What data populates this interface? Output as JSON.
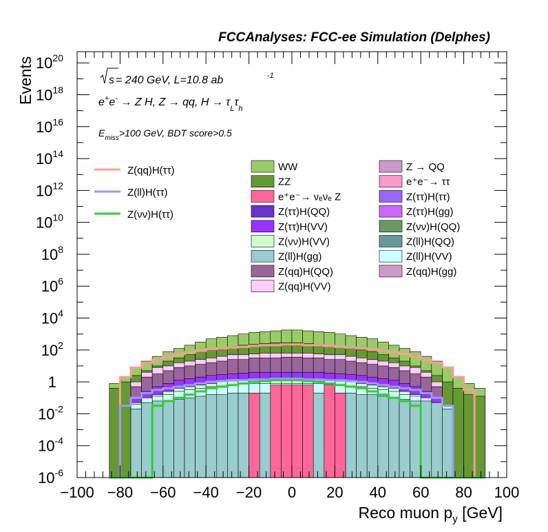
{
  "header": {
    "title": "FCCAnalyses: FCC-ee Simulation (Delphes)"
  },
  "annotations": {
    "line1_sqrt": "√s",
    "line1_rest": " = 240 GeV, L=10.8 ab",
    "line1_sup": "-1",
    "line2": "e⁺e⁻ → Z H, Z → qq, H → τ_L τ_h",
    "line3": "E_miss>100 GeV, BDT score>0.5"
  },
  "chart_data": {
    "type": "histogram",
    "xlabel": "Reco muon p_y [GeV]",
    "ylabel": "Events",
    "xlim": [
      -100,
      100
    ],
    "ylim_log10": [
      -6,
      20.7
    ],
    "yscale": "log",
    "x_ticks": [
      "−100",
      "−80",
      "−60",
      "−40",
      "−20",
      "0",
      "20",
      "40",
      "60",
      "80",
      "100"
    ],
    "y_ticks": [
      {
        "base": "10",
        "exp": "20"
      },
      {
        "base": "10",
        "exp": "18"
      },
      {
        "base": "10",
        "exp": "16"
      },
      {
        "base": "10",
        "exp": "14"
      },
      {
        "base": "10",
        "exp": "12"
      },
      {
        "base": "10",
        "exp": "10"
      },
      {
        "base": "10",
        "exp": "8"
      },
      {
        "base": "10",
        "exp": "6"
      },
      {
        "base": "10",
        "exp": "4"
      },
      {
        "base": "10",
        "exp": "2"
      },
      {
        "base": "1",
        "exp": ""
      },
      {
        "base": "10",
        "exp": "-2"
      },
      {
        "base": "10",
        "exp": "-4"
      },
      {
        "base": "10",
        "exp": "-6"
      }
    ],
    "bin_width": 5,
    "bin_edges": [
      -85,
      -80,
      -75,
      -70,
      -65,
      -60,
      -55,
      -50,
      -45,
      -40,
      -35,
      -30,
      -25,
      -20,
      -15,
      -10,
      -5,
      0,
      5,
      10,
      15,
      20,
      25,
      30,
      35,
      40,
      45,
      50,
      55,
      60,
      65,
      70,
      75,
      80,
      85,
      90
    ],
    "stack_tops": [
      {
        "name": "WW",
        "color": "#99cc66",
        "log10": [
          -0.1,
          0.3,
          0.9,
          1.3,
          1.6,
          1.9,
          2.1,
          2.3,
          2.5,
          2.7,
          2.8,
          2.9,
          3.0,
          3.1,
          3.15,
          3.2,
          3.25,
          3.25,
          3.2,
          3.15,
          3.1,
          3.0,
          2.9,
          2.8,
          2.7,
          2.5,
          2.3,
          2.1,
          1.9,
          1.6,
          1.3,
          0.9,
          0.3,
          -0.1,
          -0.4
        ]
      },
      {
        "name": "ZZ",
        "color": "#669933",
        "log10": [
          -0.4,
          0.0,
          0.4,
          0.7,
          1.0,
          1.3,
          1.5,
          1.7,
          1.9,
          2.0,
          2.1,
          2.2,
          2.3,
          2.35,
          2.4,
          2.45,
          2.45,
          2.45,
          2.4,
          2.35,
          2.3,
          2.2,
          2.1,
          2.0,
          1.9,
          1.7,
          1.5,
          1.3,
          1.0,
          0.7,
          0.4,
          0.0,
          -0.4,
          -0.8,
          -0.9
        ]
      },
      {
        "name": "Z(qq)H(VV) and lower stack",
        "color": "#ffccff",
        "log10": [
          -6,
          -6,
          0.0,
          0.6,
          0.9,
          1.0,
          1.2,
          1.3,
          1.4,
          1.5,
          1.6,
          1.7,
          1.7,
          1.75,
          1.8,
          1.8,
          1.8,
          1.8,
          1.8,
          1.75,
          1.7,
          1.7,
          1.6,
          1.5,
          1.4,
          1.3,
          1.2,
          1.0,
          0.9,
          0.6,
          0.0,
          -6,
          -6,
          -6,
          -6
        ]
      },
      {
        "name": "Z(qq)H(QQ)",
        "color": "#996699",
        "log10": [
          -6,
          -6,
          -0.3,
          0.3,
          0.5,
          0.7,
          0.9,
          1.0,
          1.1,
          1.2,
          1.3,
          1.4,
          1.4,
          1.5,
          1.5,
          1.5,
          1.55,
          1.55,
          1.5,
          1.5,
          1.4,
          1.4,
          1.3,
          1.2,
          1.1,
          1.0,
          0.9,
          0.7,
          0.5,
          0.3,
          -0.3,
          -6,
          -6,
          -6,
          -6
        ]
      },
      {
        "name": "Z(ττ)H(VV)",
        "color": "#9933ff",
        "log10": [
          -6,
          -6,
          -1.0,
          -0.6,
          -0.3,
          -0.1,
          0.1,
          0.2,
          0.3,
          0.4,
          0.45,
          0.5,
          0.55,
          0.6,
          0.6,
          0.6,
          0.6,
          0.6,
          0.6,
          0.6,
          0.55,
          0.5,
          0.45,
          0.4,
          0.3,
          0.2,
          0.1,
          -0.1,
          -0.3,
          -0.6,
          -1.0,
          -6,
          -6,
          -6,
          -6
        ]
      },
      {
        "name": "Z(νν)H(VV)",
        "color": "#ccffcc",
        "log10": [
          -6,
          -6,
          -1.3,
          -1.0,
          -0.8,
          -0.6,
          -0.4,
          -0.3,
          -0.2,
          -0.1,
          0.0,
          0.05,
          0.1,
          0.1,
          0.1,
          0.1,
          0.1,
          0.1,
          0.1,
          0.1,
          0.1,
          0.05,
          0.0,
          -0.1,
          -0.2,
          -0.3,
          -0.4,
          -0.6,
          -0.8,
          -1.0,
          -1.3,
          -6,
          -6,
          -6,
          -6
        ]
      },
      {
        "name": "Z(ll)H(VV)",
        "color": "#ccffff",
        "log10": [
          -6,
          -6,
          -1.4,
          -1.0,
          -0.9,
          -0.8,
          -0.6,
          -0.5,
          -0.4,
          -0.3,
          -0.25,
          -0.2,
          -0.15,
          -0.1,
          -0.1,
          -0.1,
          -0.1,
          -0.1,
          -0.1,
          -0.1,
          -0.15,
          -0.2,
          -0.25,
          -0.3,
          -0.4,
          -0.5,
          -0.6,
          -0.8,
          -0.9,
          -1.0,
          -1.4,
          -1.5,
          -6,
          -6,
          -6
        ]
      },
      {
        "name": "Z(ll)H(gg)",
        "color": "#99cccc",
        "log10": [
          -6,
          -6,
          -1.7,
          -1.3,
          -1.2,
          -1.2,
          -1.1,
          -1.0,
          -0.9,
          -0.8,
          -0.8,
          -0.7,
          -0.7,
          -6,
          -0.7,
          -6,
          -0.65,
          -0.65,
          -6,
          -0.7,
          -6,
          -0.7,
          -0.7,
          -0.8,
          -0.8,
          -0.9,
          -1.0,
          -1.1,
          -1.2,
          -1.2,
          -1.3,
          -1.7,
          -6,
          -6,
          -6
        ]
      },
      {
        "name": "e⁺e⁻ → νₑνₑ Z",
        "color": "#ff6699",
        "log10": [
          -6,
          -6,
          -6,
          -6,
          -6,
          -6,
          -6,
          -6,
          -6,
          -6,
          -6,
          -6,
          -6,
          -0.7,
          -6,
          -0.2,
          -0.2,
          -0.2,
          -0.2,
          -6,
          -0.2,
          -0.7,
          -6,
          -6,
          -6,
          -6,
          -6,
          -6,
          -6,
          -6,
          -6,
          -6,
          -6,
          -6,
          -6
        ]
      }
    ],
    "overlay_lines": [
      {
        "name": "Z(qq)H(ττ)",
        "color": "#ff9999",
        "log10": [
          -6,
          0.3,
          0.9,
          1.2,
          1.4,
          1.6,
          1.75,
          1.85,
          1.95,
          2.05,
          2.1,
          2.15,
          2.2,
          2.25,
          2.3,
          2.3,
          2.35,
          2.35,
          2.3,
          2.3,
          2.25,
          2.2,
          2.15,
          2.1,
          2.05,
          1.95,
          1.85,
          1.75,
          1.6,
          1.4,
          1.2,
          0.9,
          0.3,
          -0.5,
          -6
        ]
      },
      {
        "name": "Z(ll)H(ττ)",
        "color": "#9999ff",
        "log10": [
          -6,
          -1.5,
          -1.0,
          -0.7,
          -0.5,
          -0.4,
          -0.3,
          -0.2,
          -0.1,
          0.0,
          0.05,
          0.1,
          0.1,
          0.15,
          0.15,
          0.2,
          0.2,
          0.2,
          0.15,
          0.15,
          0.1,
          0.1,
          0.05,
          0.0,
          -0.1,
          -0.2,
          -0.3,
          -0.4,
          -0.5,
          -0.7,
          -1.0,
          -1.5,
          -6,
          -6,
          -6
        ]
      },
      {
        "name": "Z(νν)H(ττ)",
        "color": "#33cc33",
        "log10": [
          -6,
          -6,
          -6,
          -6,
          -1.5,
          -1.2,
          -1.0,
          -0.8,
          -0.6,
          -0.4,
          -0.3,
          -0.2,
          -0.1,
          0.0,
          0.05,
          0.1,
          0.1,
          0.1,
          0.05,
          0.0,
          -0.1,
          -0.2,
          -0.3,
          -0.4,
          -0.6,
          -0.8,
          -1.0,
          -1.2,
          -1.5,
          -6,
          -6,
          -6,
          -6,
          -6,
          -6
        ]
      }
    ]
  },
  "legend_left": [
    {
      "label": "Z(qq)H(ττ)",
      "color": "#ff9999"
    },
    {
      "label": "Z(ll)H(ττ)",
      "color": "#9999ff"
    },
    {
      "label": "Z(νν)H(ττ)",
      "color": "#33cc33"
    }
  ],
  "legend_mid": [
    {
      "label": "WW",
      "color": "#99cc66"
    },
    {
      "label": "ZZ",
      "color": "#669933"
    },
    {
      "label": "e⁺e⁻→ νₑνₑ Z",
      "color": "#ff6699"
    },
    {
      "label": "Z(ττ)H(QQ)",
      "color": "#6633cc"
    },
    {
      "label": "Z(ττ)H(VV)",
      "color": "#9933ff"
    },
    {
      "label": "Z(νν)H(VV)",
      "color": "#ccffcc"
    },
    {
      "label": "Z(ll)H(gg)",
      "color": "#99cccc"
    },
    {
      "label": "Z(qq)H(QQ)",
      "color": "#996699"
    },
    {
      "label": "Z(qq)H(VV)",
      "color": "#ffccff"
    }
  ],
  "legend_right": [
    {
      "label": "Z → QQ",
      "color": "#cc99cc"
    },
    {
      "label": "e⁺e⁻→ ττ",
      "color": "#ff99cc"
    },
    {
      "label": "Z(ττ)H(ττ)",
      "color": "#9966ff"
    },
    {
      "label": "Z(ττ)H(gg)",
      "color": "#cc66ff"
    },
    {
      "label": "Z(νν)H(QQ)",
      "color": "#669966"
    },
    {
      "label": "Z(ll)H(QQ)",
      "color": "#669999"
    },
    {
      "label": "Z(ll)H(VV)",
      "color": "#ccffff"
    },
    {
      "label": "Z(qq)H(gg)",
      "color": "#cc99cc"
    }
  ]
}
